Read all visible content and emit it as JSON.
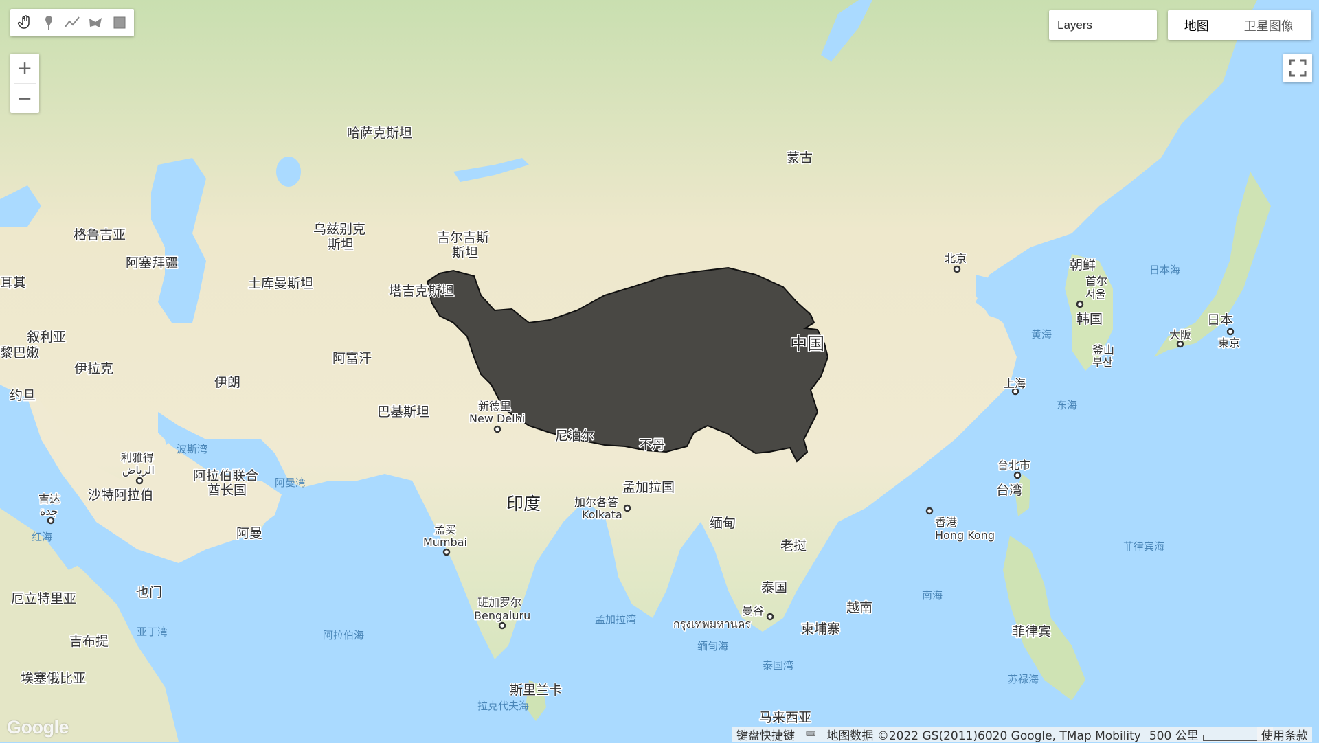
{
  "toolbar": {
    "tools": [
      {
        "name": "pan-hand-icon"
      },
      {
        "name": "marker-pin-icon"
      },
      {
        "name": "polyline-icon"
      },
      {
        "name": "polygon-icon"
      },
      {
        "name": "rectangle-icon"
      }
    ]
  },
  "zoom": {
    "in_label": "+",
    "out_label": "−"
  },
  "layers": {
    "label": "Layers"
  },
  "map_type": {
    "map_label": "地图",
    "satellite_label": "卫星图像"
  },
  "map": {
    "highlight_region_color": "#2b2b2b",
    "countries": {
      "kazakhstan": "哈萨克斯坦",
      "mongolia": "蒙古",
      "georgia": "格鲁吉亚",
      "azerbaijan": "阿塞拜疆",
      "turkey": "耳其",
      "uzbekistan_1": "乌兹别克",
      "uzbekistan_2": "斯坦",
      "kyrgyzstan_1": "吉尔吉斯",
      "kyrgyzstan_2": "斯坦",
      "turkmenistan": "土库曼斯坦",
      "tajikistan": "塔吉克斯坦",
      "syria": "叙利亚",
      "lebanon": "黎巴嫩",
      "iraq": "伊拉克",
      "iran": "伊朗",
      "afghanistan": "阿富汗",
      "jordan": "约旦",
      "pakistan": "巴基斯坦",
      "china": "中国",
      "north_korea": "朝鲜",
      "south_korea": "韩国",
      "japan": "日本",
      "uae_1": "阿拉伯联合",
      "uae_2": "酋长国",
      "saudi": "沙特阿拉伯",
      "oman": "阿曼",
      "nepal": "尼泊尔",
      "bhutan": "不丹",
      "bangladesh": "孟加拉国",
      "india": "印度",
      "myanmar": "缅甸",
      "laos": "老挝",
      "thailand": "泰国",
      "vietnam": "越南",
      "cambodia": "柬埔寨",
      "philippines": "菲律宾",
      "yemen": "也门",
      "eritrea": "厄立特里亚",
      "djibouti": "吉布提",
      "ethiopia": "埃塞俄比亚",
      "sri_lanka": "斯里兰卡",
      "malaysia": "马来西亚",
      "taiwan": "台湾"
    },
    "cities": {
      "beijing": "北京",
      "seoul_1": "首尔",
      "seoul_2": "서울",
      "busan_1": "釜山",
      "busan_2": "부산",
      "osaka": "大阪",
      "tokyo": "東京",
      "shanghai": "上海",
      "taipei": "台北市",
      "hongkong_1": "香港",
      "hongkong_2": "Hong Kong",
      "delhi_1": "新德里",
      "delhi_2": "New Delhi",
      "kolkata_1": "加尔各答",
      "kolkata_2": "Kolkata",
      "mumbai_1": "孟买",
      "mumbai_2": "Mumbai",
      "bengaluru_1": "班加罗尔",
      "bengaluru_2": "Bengaluru",
      "bangkok_1": "曼谷",
      "bangkok_2": "กรุงเทพมหานคร",
      "riyadh_1": "利雅得",
      "riyadh_2": "الرياض",
      "jeddah_1": "吉达",
      "jeddah_2": "جدة"
    },
    "waters": {
      "sea_of_japan": "日本海",
      "yellow_sea": "黄海",
      "east_china_sea": "东海",
      "philippine_sea": "菲律宾海",
      "south_china_sea": "南海",
      "sulu_sea": "苏禄海",
      "bay_of_bengal": "孟加拉湾",
      "andaman_sea": "缅甸海",
      "gulf_of_thailand": "泰国湾",
      "arabian_sea": "阿拉伯海",
      "persian_gulf": "波斯湾",
      "gulf_of_oman": "阿曼湾",
      "red_sea": "红海",
      "gulf_of_aden": "亚丁湾",
      "laccadive_sea": "拉克代夫海"
    }
  },
  "footer": {
    "logo": "Google",
    "keyboard": "键盘快捷键",
    "map_data": "地图数据 ©2022 GS(2011)6020 Google, TMap Mobility",
    "scale": "500 公里",
    "terms": "使用条款"
  }
}
